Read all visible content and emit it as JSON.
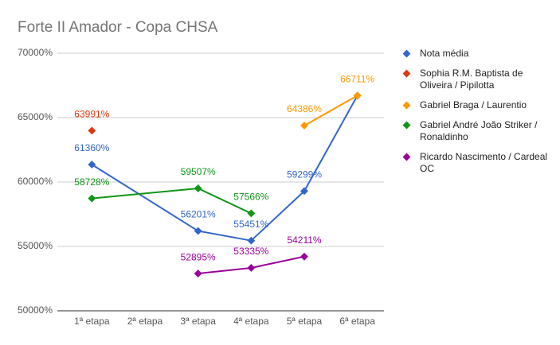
{
  "chart_data": {
    "type": "line",
    "title": "Forte II Amador - Copa CHSA",
    "categories": [
      "1ª etapa",
      "2ª etapa",
      "3ª etapa",
      "4ª etapa",
      "5ª etapa",
      "6ª etapa"
    ],
    "series": [
      {
        "name": "Nota média",
        "color": "#3366cc",
        "values": [
          61360,
          null,
          56201,
          55451,
          59299,
          66711
        ],
        "value_labels": [
          "61360%",
          null,
          "56201%",
          "55451%",
          "59299%",
          null
        ]
      },
      {
        "name": "Sophia R.M. Baptista de Oliveira / Pipilotta",
        "color": "#dc3912",
        "values": [
          63991,
          null,
          null,
          null,
          null,
          null
        ],
        "value_labels": [
          "63991%",
          null,
          null,
          null,
          null,
          null
        ]
      },
      {
        "name": "Gabriel Braga / Laurentio",
        "color": "#ff9900",
        "values": [
          null,
          null,
          null,
          null,
          64386,
          66711
        ],
        "value_labels": [
          null,
          null,
          null,
          null,
          "64386%",
          "66711%"
        ]
      },
      {
        "name": "Gabriel André João Striker / Ronaldinho",
        "color": "#109618",
        "values": [
          58728,
          null,
          59507,
          57566,
          null,
          null
        ],
        "value_labels": [
          "58728%",
          null,
          "59507%",
          "57566%",
          null,
          null
        ]
      },
      {
        "name": "Ricardo Nascimento / Cardeal OC",
        "color": "#990099",
        "values": [
          null,
          null,
          52895,
          53335,
          54211,
          null
        ],
        "value_labels": [
          null,
          null,
          "52895%",
          "53335%",
          "54211%",
          null
        ]
      }
    ],
    "ylim": [
      50000,
      70000
    ],
    "yticks": [
      {
        "value": 50000,
        "label": "50000%"
      },
      {
        "value": 55000,
        "label": "55000%"
      },
      {
        "value": 60000,
        "label": "60000%"
      },
      {
        "value": 65000,
        "label": "65000%"
      },
      {
        "value": 70000,
        "label": "70000%"
      }
    ],
    "grid": true,
    "legend": "right"
  }
}
